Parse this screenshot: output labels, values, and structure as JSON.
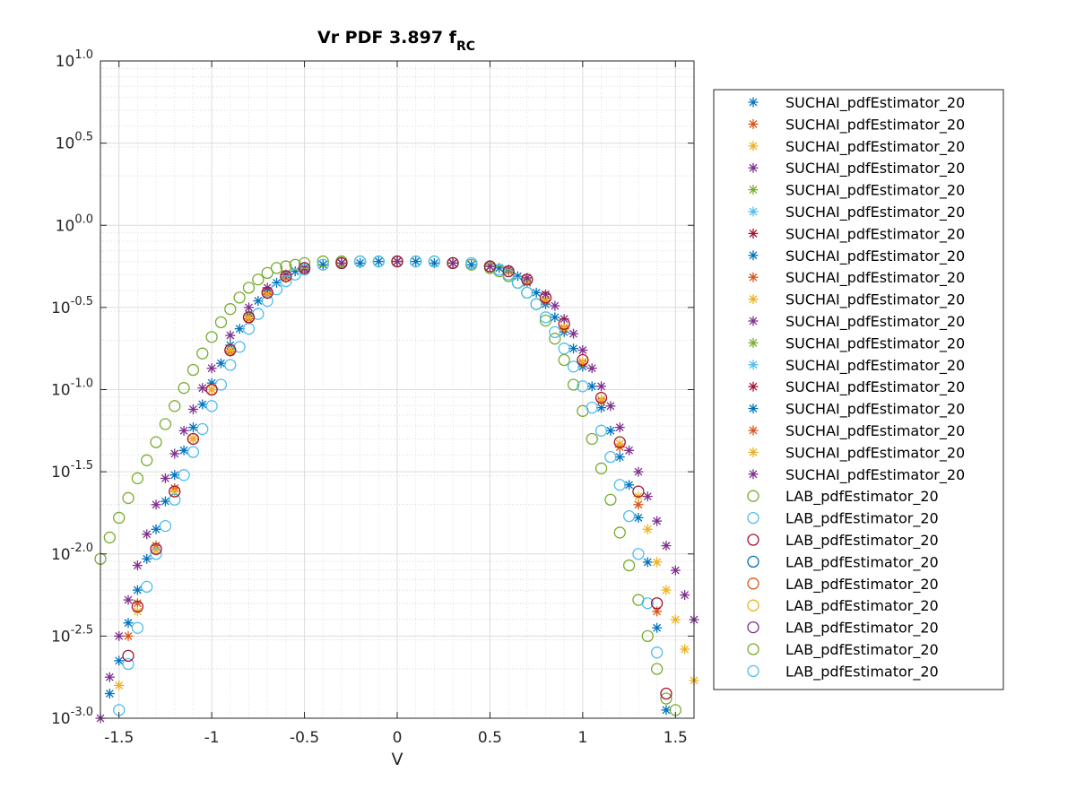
{
  "chart_data": {
    "type": "scatter",
    "title": "Vr PDF 3.897 f",
    "title_subscript": "RC",
    "xlabel": "V",
    "ylabel": "",
    "xlim": [
      -1.6,
      1.6
    ],
    "ylim_log10": [
      -3.0,
      1.0
    ],
    "y_scale": "log",
    "grid": true,
    "minor_grid": true,
    "legend_position": "outside-right",
    "x_ticks": [
      -1.5,
      -1,
      -0.5,
      0,
      0.5,
      1,
      1.5
    ],
    "x_tick_labels": [
      "-1.5",
      "-1",
      "-0.5",
      "0",
      "0.5",
      "1",
      "1.5"
    ],
    "y_ticks_log10": [
      -3.0,
      -2.5,
      -2.0,
      -1.5,
      -1.0,
      -0.5,
      0.0,
      0.5,
      1.0
    ],
    "y_tick_base": "10",
    "y_tick_exponents": [
      "-3.0",
      "-2.5",
      "-2.0",
      "-1.5",
      "-1.0",
      "-0.5",
      "0.0",
      "0.5",
      "1.0"
    ],
    "colors": [
      "#0072BD",
      "#D95319",
      "#EDB120",
      "#7E2F8E",
      "#77AC30",
      "#4DBEEE",
      "#A2142F"
    ],
    "series": [
      {
        "name": "SUCHAI_pdfEstimator_20",
        "marker": "asterisk",
        "color": "#0072BD",
        "x": [
          -1.55,
          -1.5,
          -1.45,
          -1.4,
          -1.35,
          -1.3,
          -1.25,
          -1.2,
          -1.15,
          -1.1,
          -1.05,
          -1.0,
          -0.95,
          -0.9,
          -0.85,
          -0.8,
          -0.75,
          -0.7,
          -0.65,
          -0.6,
          -0.55,
          -0.5,
          -0.4,
          -0.3,
          -0.2,
          -0.1,
          0,
          0.1,
          0.2,
          0.3,
          0.4,
          0.5,
          0.55,
          0.6,
          0.65,
          0.7,
          0.75,
          0.8,
          0.85,
          0.9,
          0.95,
          1.0,
          1.05,
          1.1,
          1.15,
          1.2,
          1.25,
          1.3,
          1.35,
          1.4,
          1.45
        ],
        "y_log10": [
          -2.85,
          -2.65,
          -2.42,
          -2.22,
          -2.03,
          -1.85,
          -1.68,
          -1.52,
          -1.37,
          -1.23,
          -1.09,
          -0.96,
          -0.84,
          -0.73,
          -0.63,
          -0.54,
          -0.46,
          -0.4,
          -0.35,
          -0.31,
          -0.28,
          -0.26,
          -0.24,
          -0.23,
          -0.23,
          -0.22,
          -0.22,
          -0.22,
          -0.23,
          -0.23,
          -0.24,
          -0.25,
          -0.26,
          -0.28,
          -0.31,
          -0.35,
          -0.41,
          -0.48,
          -0.56,
          -0.65,
          -0.75,
          -0.86,
          -0.98,
          -1.11,
          -1.25,
          -1.41,
          -1.58,
          -1.78,
          -2.05,
          -2.45,
          -2.95
        ]
      },
      {
        "name": "SUCHAI_pdfEstimator_20",
        "marker": "asterisk",
        "color": "#D95319",
        "x": [
          -1.45,
          -1.4,
          -1.3,
          -1.2,
          -1.1,
          -1.0,
          -0.9,
          -0.8,
          -0.7,
          -0.6,
          -0.5,
          -0.3,
          0,
          0.3,
          0.5,
          0.6,
          0.7,
          0.8,
          0.9,
          1.0,
          1.1,
          1.2,
          1.3,
          1.4
        ],
        "y_log10": [
          -2.5,
          -2.3,
          -1.95,
          -1.6,
          -1.3,
          -1.0,
          -0.77,
          -0.57,
          -0.42,
          -0.32,
          -0.27,
          -0.23,
          -0.22,
          -0.23,
          -0.25,
          -0.28,
          -0.34,
          -0.46,
          -0.63,
          -0.84,
          -1.07,
          -1.35,
          -1.7,
          -2.35
        ]
      },
      {
        "name": "SUCHAI_pdfEstimator_20",
        "marker": "asterisk",
        "color": "#EDB120",
        "x": [
          -1.5,
          -1.4,
          -1.3,
          -1.2,
          -1.1,
          -1.0,
          -0.9,
          -0.8,
          -0.7,
          -0.6,
          -0.5,
          -0.3,
          0,
          0.3,
          0.5,
          0.6,
          0.7,
          0.8,
          0.9,
          1.0,
          1.1,
          1.2,
          1.3,
          1.35,
          1.4,
          1.45,
          1.5,
          1.55,
          1.6
        ],
        "y_log10": [
          -2.8,
          -2.35,
          -1.98,
          -1.62,
          -1.3,
          -1.0,
          -0.76,
          -0.56,
          -0.41,
          -0.31,
          -0.26,
          -0.23,
          -0.22,
          -0.23,
          -0.25,
          -0.28,
          -0.34,
          -0.45,
          -0.62,
          -0.83,
          -1.06,
          -1.33,
          -1.65,
          -1.85,
          -2.05,
          -2.22,
          -2.4,
          -2.58,
          -2.77
        ]
      },
      {
        "name": "SUCHAI_pdfEstimator_20",
        "marker": "asterisk",
        "color": "#7E2F8E",
        "x": [
          -1.6,
          -1.55,
          -1.5,
          -1.45,
          -1.4,
          -1.35,
          -1.3,
          -1.25,
          -1.2,
          -1.15,
          -1.1,
          -1.05,
          -1.0,
          -0.9,
          -0.8,
          -0.7,
          -0.6,
          -0.5,
          -0.3,
          0,
          0.3,
          0.5,
          0.6,
          0.7,
          0.8,
          0.85,
          0.9,
          0.95,
          1.0,
          1.05,
          1.1,
          1.15,
          1.2,
          1.25,
          1.3,
          1.35,
          1.4,
          1.45,
          1.5,
          1.55,
          1.6
        ],
        "y_log10": [
          -3.0,
          -2.75,
          -2.5,
          -2.28,
          -2.07,
          -1.88,
          -1.7,
          -1.54,
          -1.39,
          -1.25,
          -1.12,
          -0.99,
          -0.87,
          -0.67,
          -0.5,
          -0.38,
          -0.3,
          -0.26,
          -0.23,
          -0.22,
          -0.23,
          -0.25,
          -0.27,
          -0.32,
          -0.42,
          -0.49,
          -0.57,
          -0.66,
          -0.76,
          -0.87,
          -0.98,
          -1.1,
          -1.23,
          -1.37,
          -1.5,
          -1.65,
          -1.8,
          -1.95,
          -2.1,
          -2.25,
          -2.4
        ]
      },
      {
        "name": "LAB_pdfEstimator_20",
        "marker": "circle",
        "color": "#77AC30",
        "x": [
          -1.6,
          -1.55,
          -1.5,
          -1.45,
          -1.4,
          -1.35,
          -1.3,
          -1.25,
          -1.2,
          -1.15,
          -1.1,
          -1.05,
          -1.0,
          -0.95,
          -0.9,
          -0.85,
          -0.8,
          -0.75,
          -0.7,
          -0.65,
          -0.6,
          -0.55,
          -0.5,
          -0.4,
          -0.3,
          -0.2,
          -0.1,
          0,
          0.1,
          0.2,
          0.3,
          0.4,
          0.5,
          0.55,
          0.6,
          0.65,
          0.7,
          0.75,
          0.8,
          0.85,
          0.9,
          0.95,
          1.0,
          1.05,
          1.1,
          1.15,
          1.2,
          1.25,
          1.3,
          1.35,
          1.4,
          1.45,
          1.5
        ],
        "y_log10": [
          -2.03,
          -1.9,
          -1.78,
          -1.66,
          -1.54,
          -1.43,
          -1.32,
          -1.21,
          -1.1,
          -0.99,
          -0.88,
          -0.78,
          -0.68,
          -0.59,
          -0.51,
          -0.44,
          -0.38,
          -0.33,
          -0.29,
          -0.26,
          -0.25,
          -0.24,
          -0.23,
          -0.22,
          -0.22,
          -0.22,
          -0.22,
          -0.22,
          -0.22,
          -0.22,
          -0.23,
          -0.24,
          -0.26,
          -0.28,
          -0.31,
          -0.35,
          -0.41,
          -0.48,
          -0.58,
          -0.69,
          -0.82,
          -0.97,
          -1.13,
          -1.3,
          -1.48,
          -1.67,
          -1.87,
          -2.07,
          -2.28,
          -2.5,
          -2.7,
          -2.88,
          -2.95
        ]
      },
      {
        "name": "LAB_pdfEstimator_20",
        "marker": "circle",
        "color": "#4DBEEE",
        "x": [
          -1.5,
          -1.45,
          -1.4,
          -1.35,
          -1.3,
          -1.25,
          -1.2,
          -1.15,
          -1.1,
          -1.05,
          -1.0,
          -0.95,
          -0.9,
          -0.85,
          -0.8,
          -0.75,
          -0.7,
          -0.65,
          -0.6,
          -0.55,
          -0.5,
          -0.4,
          -0.3,
          -0.2,
          -0.1,
          0,
          0.1,
          0.2,
          0.3,
          0.4,
          0.5,
          0.55,
          0.6,
          0.65,
          0.7,
          0.75,
          0.8,
          0.85,
          0.9,
          0.95,
          1.0,
          1.05,
          1.1,
          1.15,
          1.2,
          1.25,
          1.3,
          1.35,
          1.4
        ],
        "y_log10": [
          -2.95,
          -2.67,
          -2.45,
          -2.2,
          -2.0,
          -1.83,
          -1.67,
          -1.52,
          -1.38,
          -1.24,
          -1.1,
          -0.97,
          -0.85,
          -0.74,
          -0.63,
          -0.54,
          -0.46,
          -0.39,
          -0.34,
          -0.3,
          -0.27,
          -0.24,
          -0.23,
          -0.22,
          -0.22,
          -0.22,
          -0.22,
          -0.22,
          -0.23,
          -0.23,
          -0.25,
          -0.27,
          -0.3,
          -0.35,
          -0.41,
          -0.48,
          -0.56,
          -0.65,
          -0.75,
          -0.86,
          -0.98,
          -1.11,
          -1.25,
          -1.41,
          -1.58,
          -1.77,
          -2.0,
          -2.3,
          -2.6
        ]
      },
      {
        "name": "LAB_pdfEstimator_20",
        "marker": "circle",
        "color": "#A2142F",
        "x": [
          -1.45,
          -1.4,
          -1.3,
          -1.2,
          -1.1,
          -1.0,
          -0.9,
          -0.8,
          -0.7,
          -0.6,
          -0.5,
          -0.3,
          0,
          0.3,
          0.5,
          0.6,
          0.7,
          0.8,
          0.9,
          1.0,
          1.1,
          1.2,
          1.3,
          1.4,
          1.45
        ],
        "y_log10": [
          -2.62,
          -2.32,
          -1.97,
          -1.62,
          -1.3,
          -1.0,
          -0.76,
          -0.56,
          -0.41,
          -0.31,
          -0.26,
          -0.23,
          -0.22,
          -0.23,
          -0.25,
          -0.28,
          -0.33,
          -0.44,
          -0.6,
          -0.82,
          -1.05,
          -1.32,
          -1.62,
          -2.3,
          -2.85
        ]
      }
    ]
  },
  "legend": {
    "entries": [
      {
        "label": "SUCHAI_pdfEstimator_20",
        "marker": "asterisk",
        "color": "#0072BD"
      },
      {
        "label": "SUCHAI_pdfEstimator_20",
        "marker": "asterisk",
        "color": "#D95319"
      },
      {
        "label": "SUCHAI_pdfEstimator_20",
        "marker": "asterisk",
        "color": "#EDB120"
      },
      {
        "label": "SUCHAI_pdfEstimator_20",
        "marker": "asterisk",
        "color": "#7E2F8E"
      },
      {
        "label": "SUCHAI_pdfEstimator_20",
        "marker": "asterisk",
        "color": "#77AC30"
      },
      {
        "label": "SUCHAI_pdfEstimator_20",
        "marker": "asterisk",
        "color": "#4DBEEE"
      },
      {
        "label": "SUCHAI_pdfEstimator_20",
        "marker": "asterisk",
        "color": "#A2142F"
      },
      {
        "label": "SUCHAI_pdfEstimator_20",
        "marker": "asterisk",
        "color": "#0072BD"
      },
      {
        "label": "SUCHAI_pdfEstimator_20",
        "marker": "asterisk",
        "color": "#D95319"
      },
      {
        "label": "SUCHAI_pdfEstimator_20",
        "marker": "asterisk",
        "color": "#EDB120"
      },
      {
        "label": "SUCHAI_pdfEstimator_20",
        "marker": "asterisk",
        "color": "#7E2F8E"
      },
      {
        "label": "SUCHAI_pdfEstimator_20",
        "marker": "asterisk",
        "color": "#77AC30"
      },
      {
        "label": "SUCHAI_pdfEstimator_20",
        "marker": "asterisk",
        "color": "#4DBEEE"
      },
      {
        "label": "SUCHAI_pdfEstimator_20",
        "marker": "asterisk",
        "color": "#A2142F"
      },
      {
        "label": "SUCHAI_pdfEstimator_20",
        "marker": "asterisk",
        "color": "#0072BD"
      },
      {
        "label": "SUCHAI_pdfEstimator_20",
        "marker": "asterisk",
        "color": "#D95319"
      },
      {
        "label": "SUCHAI_pdfEstimator_20",
        "marker": "asterisk",
        "color": "#EDB120"
      },
      {
        "label": "SUCHAI_pdfEstimator_20",
        "marker": "asterisk",
        "color": "#7E2F8E"
      },
      {
        "label": "LAB_pdfEstimator_20",
        "marker": "circle",
        "color": "#77AC30"
      },
      {
        "label": "LAB_pdfEstimator_20",
        "marker": "circle",
        "color": "#4DBEEE"
      },
      {
        "label": "LAB_pdfEstimator_20",
        "marker": "circle",
        "color": "#A2142F"
      },
      {
        "label": "LAB_pdfEstimator_20",
        "marker": "circle",
        "color": "#0072BD"
      },
      {
        "label": "LAB_pdfEstimator_20",
        "marker": "circle",
        "color": "#D95319"
      },
      {
        "label": "LAB_pdfEstimator_20",
        "marker": "circle",
        "color": "#EDB120"
      },
      {
        "label": "LAB_pdfEstimator_20",
        "marker": "circle",
        "color": "#7E2F8E"
      },
      {
        "label": "LAB_pdfEstimator_20",
        "marker": "circle",
        "color": "#77AC30"
      },
      {
        "label": "LAB_pdfEstimator_20",
        "marker": "circle",
        "color": "#4DBEEE"
      }
    ]
  }
}
